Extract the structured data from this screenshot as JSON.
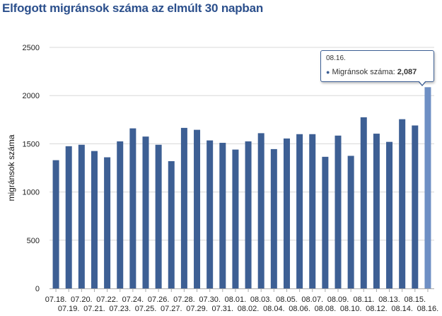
{
  "title": "Elfogott migránsok száma az elmúlt 30 napban",
  "chart_data": {
    "type": "bar",
    "categories": [
      "07.18.",
      "07.19.",
      "07.20.",
      "07.21.",
      "07.22.",
      "07.23.",
      "07.24.",
      "07.25.",
      "07.26.",
      "07.27.",
      "07.28.",
      "07.29.",
      "07.30.",
      "07.31.",
      "08.01.",
      "08.02.",
      "08.03.",
      "08.04.",
      "08.05.",
      "08.06.",
      "08.07.",
      "08.08.",
      "08.09.",
      "08.10.",
      "08.11.",
      "08.12.",
      "08.13.",
      "08.14.",
      "08.15.",
      "08.16."
    ],
    "values": [
      1330,
      1475,
      1490,
      1425,
      1360,
      1525,
      1660,
      1575,
      1490,
      1320,
      1665,
      1645,
      1535,
      1510,
      1440,
      1525,
      1610,
      1445,
      1555,
      1600,
      1600,
      1365,
      1585,
      1375,
      1775,
      1605,
      1520,
      1755,
      1690,
      2087
    ],
    "series": [
      {
        "name": "Migránsok száma",
        "values": [
          1330,
          1475,
          1490,
          1425,
          1360,
          1525,
          1660,
          1575,
          1490,
          1320,
          1665,
          1645,
          1535,
          1510,
          1440,
          1525,
          1610,
          1445,
          1555,
          1600,
          1600,
          1365,
          1585,
          1375,
          1775,
          1605,
          1520,
          1755,
          1690,
          2087
        ]
      }
    ],
    "ylabel": "migránsok száma",
    "xlabel": "",
    "ylim": [
      0,
      2500
    ],
    "yticks": [
      "0",
      "500",
      "1000",
      "1500",
      "2000",
      "2500"
    ],
    "grid": true,
    "bar_color": "#3d5f94",
    "highlight_color": "#6e8fc4"
  },
  "tooltip": {
    "date": "08.16.",
    "series_label": "Migránsok száma:",
    "value": "2,087"
  },
  "colors": {
    "title": "#2b4f8c",
    "bar": "#3d5f94",
    "grid": "#d8d8d8"
  }
}
